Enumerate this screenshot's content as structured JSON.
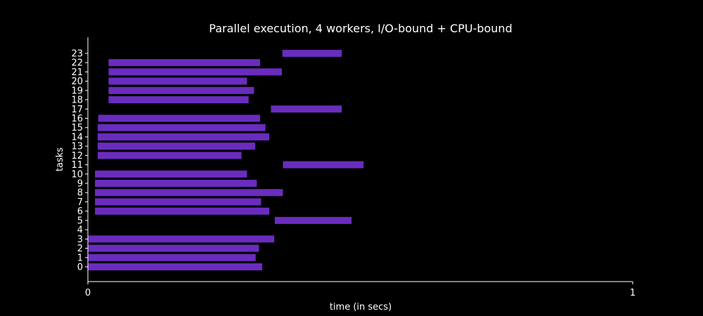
{
  "chart_data": {
    "type": "bar",
    "orientation": "horizontal-gantt",
    "title": "Parallel execution, 4 workers, I/O-bound + CPU-bound",
    "xlabel": "time (in secs)",
    "ylabel": "tasks",
    "xlim": [
      0,
      1
    ],
    "x_ticks": [
      "0",
      "1"
    ],
    "categories": [
      "0",
      "1",
      "2",
      "3",
      "4",
      "5",
      "6",
      "7",
      "8",
      "9",
      "10",
      "11",
      "12",
      "13",
      "14",
      "15",
      "16",
      "17",
      "18",
      "19",
      "20",
      "21",
      "22",
      "23"
    ],
    "bar_color": "#6a2cbf",
    "background": "#000000",
    "foreground": "#ffffff",
    "grid": false,
    "legend": "none",
    "tasks": [
      {
        "task": "0",
        "start": 0.0,
        "end": 0.32
      },
      {
        "task": "1",
        "start": 0.0,
        "end": 0.308
      },
      {
        "task": "2",
        "start": 0.0,
        "end": 0.314
      },
      {
        "task": "3",
        "start": 0.0,
        "end": 0.342
      },
      {
        "task": "4",
        "start": null,
        "end": null
      },
      {
        "task": "5",
        "start": 0.343,
        "end": 0.484
      },
      {
        "task": "6",
        "start": 0.013,
        "end": 0.333
      },
      {
        "task": "7",
        "start": 0.013,
        "end": 0.318
      },
      {
        "task": "8",
        "start": 0.013,
        "end": 0.358
      },
      {
        "task": "9",
        "start": 0.013,
        "end": 0.31
      },
      {
        "task": "10",
        "start": 0.013,
        "end": 0.292
      },
      {
        "task": "11",
        "start": 0.358,
        "end": 0.506
      },
      {
        "task": "12",
        "start": 0.018,
        "end": 0.282
      },
      {
        "task": "13",
        "start": 0.018,
        "end": 0.307
      },
      {
        "task": "14",
        "start": 0.018,
        "end": 0.333
      },
      {
        "task": "15",
        "start": 0.018,
        "end": 0.326
      },
      {
        "task": "16",
        "start": 0.019,
        "end": 0.316
      },
      {
        "task": "17",
        "start": 0.336,
        "end": 0.466
      },
      {
        "task": "18",
        "start": 0.038,
        "end": 0.295
      },
      {
        "task": "19",
        "start": 0.038,
        "end": 0.305
      },
      {
        "task": "20",
        "start": 0.038,
        "end": 0.292
      },
      {
        "task": "21",
        "start": 0.038,
        "end": 0.356
      },
      {
        "task": "22",
        "start": 0.038,
        "end": 0.316
      },
      {
        "task": "23",
        "start": 0.357,
        "end": 0.466
      }
    ]
  }
}
